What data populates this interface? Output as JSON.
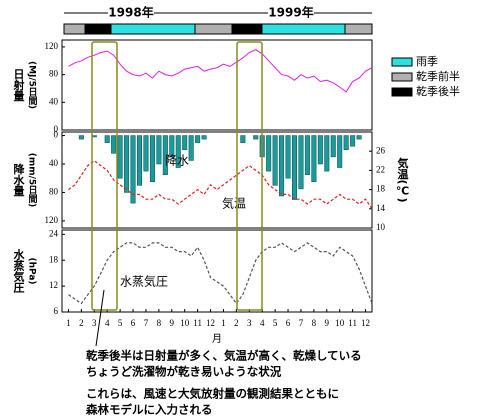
{
  "season_bar": {
    "years": [
      "1998年",
      "1999年"
    ],
    "legend": [
      {
        "name": "雨季",
        "color": "#2ee0e0"
      },
      {
        "name": "乾季前半",
        "color": "#b0b0b0"
      },
      {
        "name": "乾季後半",
        "color": "#000000"
      }
    ]
  },
  "chart_data": [
    {
      "type": "line",
      "ylabel": [
        "日射量",
        "(MJ/5日間)"
      ],
      "xlim": [
        0.5,
        24.5
      ],
      "ylim": [
        0,
        130
      ],
      "yticks": [
        0,
        40,
        80,
        120
      ],
      "x": [
        1,
        1.5,
        2,
        2.5,
        3,
        3.5,
        4,
        4.5,
        5,
        5.5,
        6,
        6.5,
        7,
        7.5,
        8,
        8.5,
        9,
        9.5,
        10,
        10.5,
        11,
        11.5,
        12,
        12.5,
        13,
        13.5,
        14,
        14.5,
        15,
        15.5,
        16,
        16.5,
        17,
        17.5,
        18,
        18.5,
        19,
        19.5,
        20,
        20.5,
        21,
        21.5,
        22,
        22.5,
        23,
        23.5,
        24,
        24.5
      ],
      "series": [
        {
          "color": "#e020e0",
          "values": [
            92,
            97,
            100,
            105,
            108,
            112,
            114,
            108,
            95,
            85,
            80,
            78,
            82,
            75,
            85,
            80,
            78,
            82,
            88,
            90,
            92,
            85,
            88,
            90,
            95,
            92,
            98,
            104,
            112,
            116,
            110,
            100,
            90,
            80,
            78,
            72,
            80,
            75,
            78,
            70,
            72,
            68,
            62,
            55,
            70,
            75,
            85,
            90
          ]
        }
      ]
    },
    {
      "type": "bar",
      "ylabel": [
        "降水量",
        "(mm/5日間)"
      ],
      "y2label": "気温(℃)",
      "xlim": [
        0.5,
        24.5
      ],
      "ylim": [
        130,
        -5
      ],
      "yticks": [
        0,
        40,
        80,
        120
      ],
      "y2lim": [
        10,
        30
      ],
      "y2ticks": [
        10,
        14,
        18,
        22,
        26
      ],
      "x": [
        1,
        1.5,
        2,
        2.5,
        3,
        3.5,
        4,
        4.5,
        5,
        5.5,
        6,
        6.5,
        7,
        7.5,
        8,
        8.5,
        9,
        9.5,
        10,
        10.5,
        11,
        11.5,
        12,
        12.5,
        13,
        13.5,
        14,
        14.5,
        15,
        15.5,
        16,
        16.5,
        17,
        17.5,
        18,
        18.5,
        19,
        19.5,
        20,
        20.5,
        21,
        21.5,
        22,
        22.5,
        23,
        23.5,
        24,
        24.5
      ],
      "series": [
        {
          "name": "降水",
          "type": "bar",
          "color": "#1a9a9a",
          "values": [
            0,
            0,
            5,
            0,
            2,
            0,
            10,
            25,
            60,
            80,
            95,
            70,
            50,
            65,
            40,
            55,
            30,
            45,
            20,
            35,
            10,
            5,
            0,
            0,
            0,
            0,
            0,
            10,
            0,
            5,
            30,
            50,
            70,
            85,
            60,
            90,
            75,
            55,
            65,
            40,
            50,
            30,
            45,
            20,
            15,
            5,
            0,
            0
          ]
        },
        {
          "name": "気温",
          "type": "line",
          "axis": "y2",
          "color": "#e02020",
          "values": [
            18,
            19,
            21,
            23,
            24,
            23,
            22,
            20,
            19,
            18,
            17,
            17,
            16,
            16,
            17,
            16,
            16,
            15,
            16,
            17,
            18,
            17,
            19,
            18,
            19,
            20,
            21,
            22,
            23,
            22,
            21,
            19,
            18,
            17,
            17,
            16,
            16,
            15,
            16,
            16,
            15,
            16,
            17,
            16,
            16,
            15,
            16,
            14
          ]
        }
      ]
    },
    {
      "type": "line",
      "ylabel": [
        "水蒸気圧",
        "(hPa)"
      ],
      "xlabel": "月",
      "xlim": [
        0.5,
        24.5
      ],
      "ylim": [
        6,
        25
      ],
      "yticks": [
        6,
        12,
        18,
        24
      ],
      "xticks": [
        1,
        2,
        3,
        4,
        5,
        6,
        7,
        8,
        9,
        10,
        11,
        12,
        {
          "value": 13,
          "label": "1"
        },
        {
          "value": 14,
          "label": "2"
        },
        {
          "value": 15,
          "label": "3"
        },
        {
          "value": 16,
          "label": "4"
        },
        {
          "value": 17,
          "label": "5"
        },
        {
          "value": 18,
          "label": "6"
        },
        {
          "value": 19,
          "label": "7"
        },
        {
          "value": 20,
          "label": "8"
        },
        {
          "value": 21,
          "label": "9"
        },
        {
          "value": 22,
          "label": "10"
        },
        {
          "value": 23,
          "label": "11"
        },
        {
          "value": 24,
          "label": "12"
        }
      ],
      "x": [
        1,
        1.5,
        2,
        2.5,
        3,
        3.5,
        4,
        4.5,
        5,
        5.5,
        6,
        6.5,
        7,
        7.5,
        8,
        8.5,
        9,
        9.5,
        10,
        10.5,
        11,
        11.5,
        12,
        12.5,
        13,
        13.5,
        14,
        14.5,
        15,
        15.5,
        16,
        16.5,
        17,
        17.5,
        18,
        18.5,
        19,
        19.5,
        20,
        20.5,
        21,
        21.5,
        22,
        22.5,
        23,
        23.5,
        24,
        24.5
      ],
      "series": [
        {
          "name": "水蒸気圧",
          "type": "line",
          "color": "#555555",
          "values": [
            10,
            9,
            8,
            10,
            12,
            15,
            18,
            20,
            21,
            22,
            22,
            21,
            21,
            22,
            22,
            21,
            21,
            20,
            20,
            19,
            21,
            18,
            14,
            13,
            12,
            10,
            8,
            10,
            14,
            18,
            20,
            21,
            21,
            22,
            21,
            20,
            21,
            22,
            21,
            20,
            20,
            19,
            21,
            20,
            19,
            16,
            12,
            8
          ]
        }
      ]
    }
  ],
  "notes": [
    "乾季後半は日射量が多く、気温が高く、乾燥している",
    "ちょうど洗濯物が乾き易いような状況",
    "これらは、風速と大気放射量の観測結果とともに",
    "森林モデルに入力される"
  ]
}
